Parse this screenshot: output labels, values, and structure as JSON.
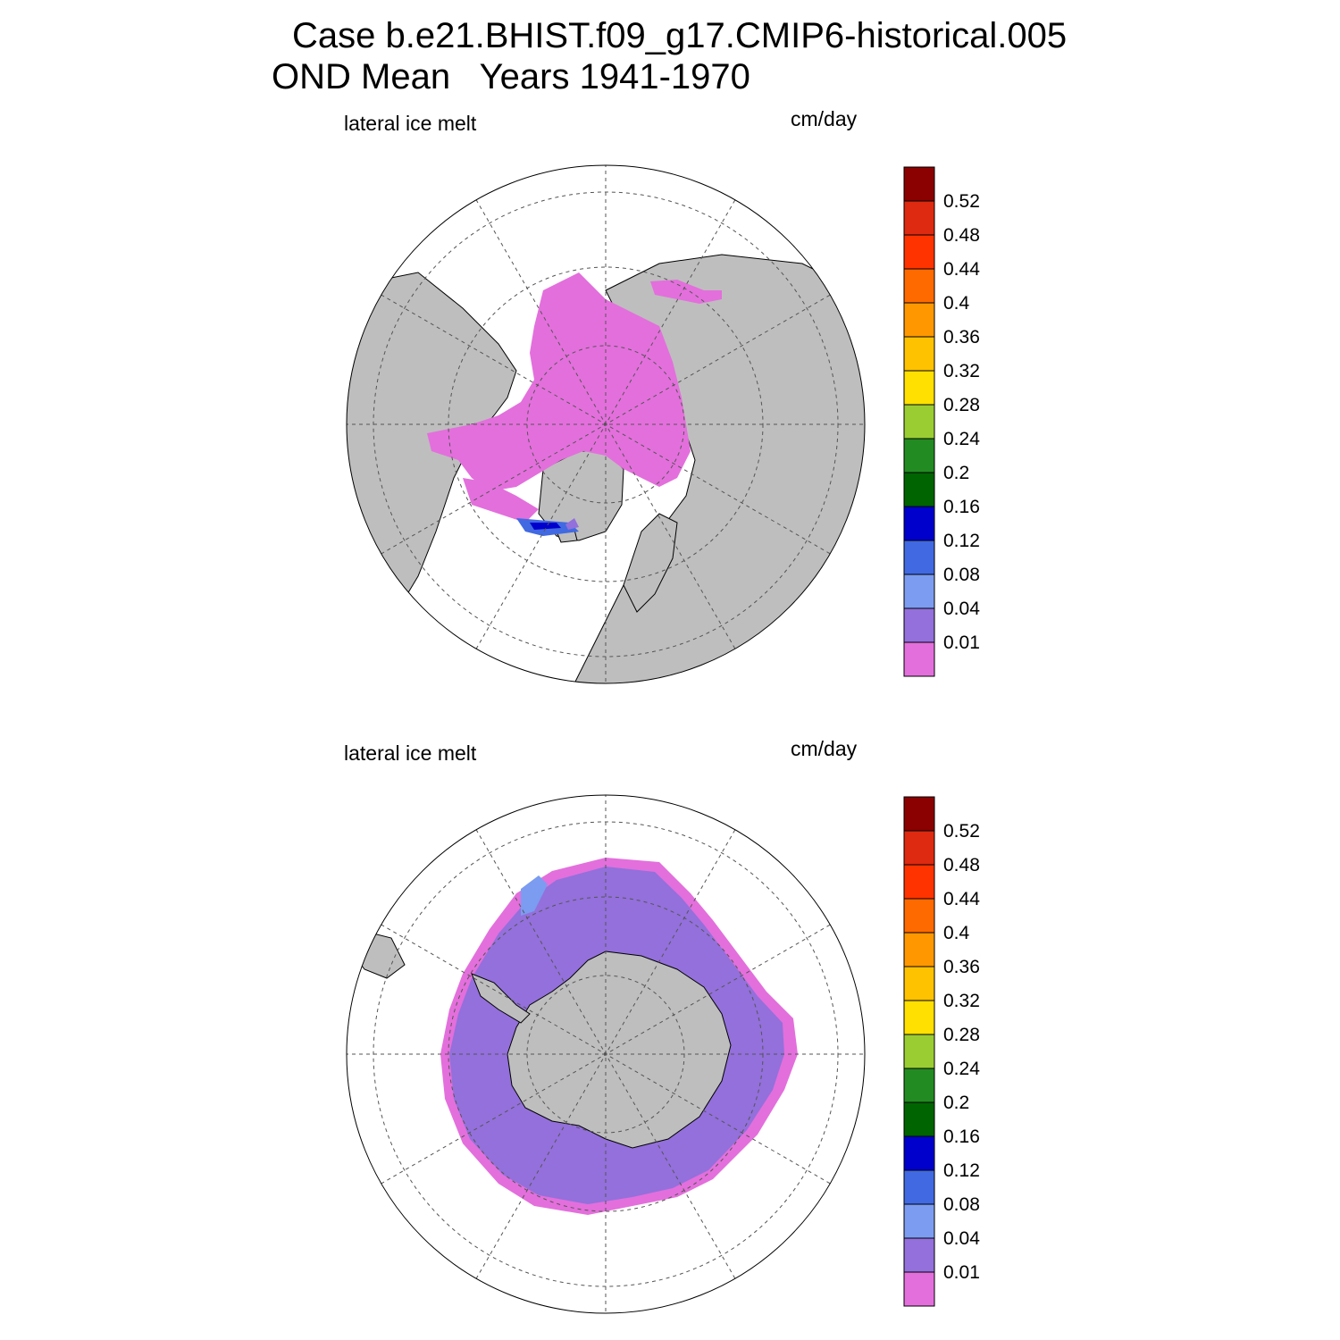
{
  "title": {
    "line1": "Case b.e21.BHIST.f09_g17.CMIP6-historical.005",
    "line2": "OND Mean   Years 1941-1970"
  },
  "panels": [
    {
      "left_label": "lateral ice melt",
      "right_label": "cm/day",
      "hemisphere": "north"
    },
    {
      "left_label": "lateral ice melt",
      "right_label": "cm/day",
      "hemisphere": "south"
    }
  ],
  "colorbar": {
    "levels": [
      "0.01",
      "0.04",
      "0.08",
      "0.12",
      "0.16",
      "0.2",
      "0.24",
      "0.28",
      "0.32",
      "0.36",
      "0.4",
      "0.44",
      "0.48",
      "0.52"
    ],
    "colors": [
      "#e36fdc",
      "#9370db",
      "#7b9cf0",
      "#4169e1",
      "#0000cd",
      "#006400",
      "#228b22",
      "#9acd32",
      "#ffe000",
      "#ffc200",
      "#ff9800",
      "#ff6a00",
      "#ff3300",
      "#dd2a10",
      "#8b0000"
    ]
  },
  "map_colors": {
    "land": "#bebebe",
    "ocean": "#ffffff",
    "coast": "#000000",
    "grid": "#555555"
  }
}
